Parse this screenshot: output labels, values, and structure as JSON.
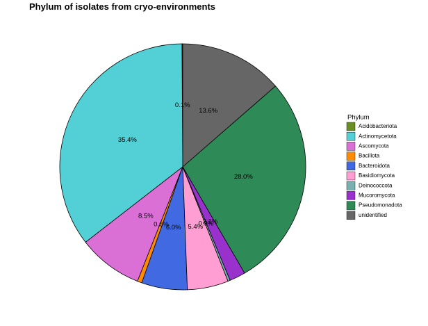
{
  "chart_data": {
    "type": "pie",
    "title": "Phylum of isolates from cryo-environments",
    "legend_title": "Phylum",
    "categories": [
      "Acidobacteriota",
      "Actinomycetota",
      "Ascomycota",
      "Bacillota",
      "Bacteroidota",
      "Basidiomycota",
      "Deinococcota",
      "Mucoromycota",
      "Pseudomonadota",
      "unidentified"
    ],
    "values": [
      0.1,
      35.4,
      8.5,
      0.6,
      6.0,
      5.4,
      0.3,
      2.1,
      28.0,
      13.6
    ],
    "value_labels": [
      "0.1%",
      "35.4%",
      "8.5%",
      "0.6%",
      "6.0%",
      "5.4%",
      "0.3%",
      "2.1%",
      "28.0%",
      "13.6%"
    ],
    "colors": [
      "#6b8e23",
      "#53d0d5",
      "#da70d6",
      "#ff8c00",
      "#4169e1",
      "#ff9ed2",
      "#79b1b1",
      "#9932cc",
      "#2e8b57",
      "#666666"
    ],
    "legend_position": "right"
  }
}
